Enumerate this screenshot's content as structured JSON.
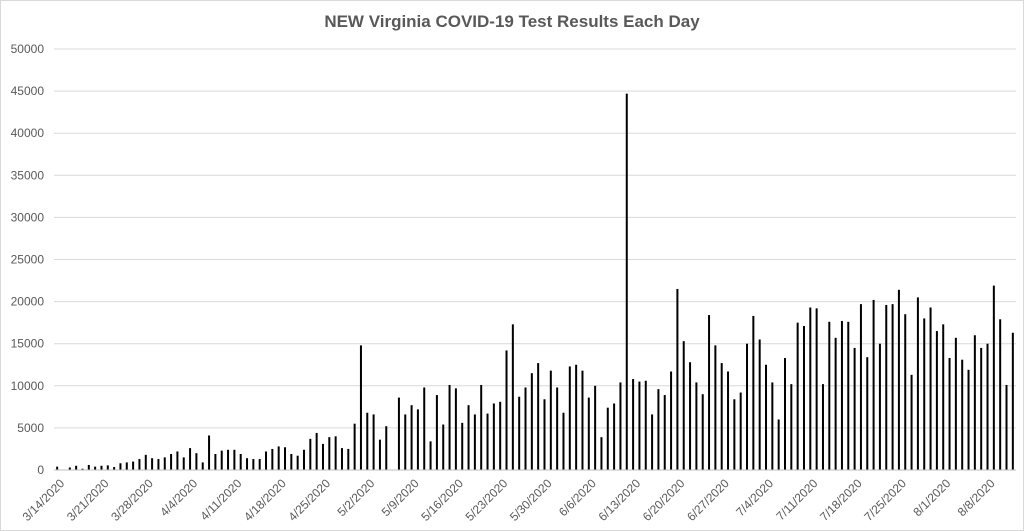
{
  "chart_data": {
    "type": "bar",
    "title": "NEW Virginia COVID-19 Test Results Each Day",
    "xlabel": "",
    "ylabel": "",
    "ylim": [
      0,
      50000
    ],
    "grid": "horizontal",
    "legend": "none",
    "bar_color": "#000000",
    "grid_color": "#d9d9d9",
    "yticks": [
      0,
      5000,
      10000,
      15000,
      20000,
      25000,
      30000,
      35000,
      40000,
      45000,
      50000
    ],
    "xtick_labels": [
      "3/14/2020",
      "3/21/2020",
      "3/28/2020",
      "4/4/2020",
      "4/11/2020",
      "4/18/2020",
      "4/25/2020",
      "5/2/2020",
      "5/9/2020",
      "5/16/2020",
      "5/23/2020",
      "5/30/2020",
      "6/6/2020",
      "6/13/2020",
      "6/20/2020",
      "6/27/2020",
      "7/4/2020",
      "7/11/2020",
      "7/18/2020",
      "7/25/2020",
      "8/1/2020",
      "8/8/2020"
    ],
    "x_start": "3/14/2020",
    "values": [
      400,
      50,
      300,
      500,
      150,
      600,
      400,
      500,
      550,
      350,
      800,
      900,
      1000,
      1300,
      1800,
      1400,
      1300,
      1500,
      1900,
      2200,
      1500,
      2600,
      2000,
      900,
      4100,
      1900,
      2300,
      2400,
      2400,
      1900,
      1400,
      1300,
      1300,
      2200,
      2500,
      2800,
      2700,
      1900,
      1700,
      2400,
      3700,
      4400,
      3100,
      3900,
      4000,
      2600,
      2500,
      5500,
      14800,
      6800,
      6600,
      3600,
      5200,
      0,
      8600,
      6600,
      7700,
      7200,
      9800,
      3400,
      8900,
      5400,
      10100,
      9700,
      5600,
      7700,
      6600,
      10100,
      6700,
      7900,
      8100,
      14200,
      17300,
      8700,
      9800,
      11500,
      12700,
      8400,
      11800,
      9800,
      6800,
      12300,
      12500,
      11800,
      8600,
      10000,
      3900,
      7400,
      7900,
      10400,
      44700,
      10800,
      10500,
      10600,
      6600,
      9600,
      8900,
      11700,
      21500,
      15300,
      12800,
      10400,
      9000,
      18400,
      14800,
      12700,
      11700,
      8400,
      9200,
      15000,
      18300,
      15500,
      12500,
      10400,
      6000,
      13300,
      10200,
      17500,
      17100,
      19300,
      19200,
      10200,
      17600,
      15700,
      17700,
      17600,
      14500,
      19700,
      13400,
      20200,
      15000,
      19600,
      19700,
      21400,
      18500,
      11300,
      20500,
      18000,
      19300,
      16500,
      17300,
      13300,
      15700,
      13100,
      11900,
      16000,
      14500,
      15000,
      21900,
      17900,
      10100,
      16300
    ]
  }
}
